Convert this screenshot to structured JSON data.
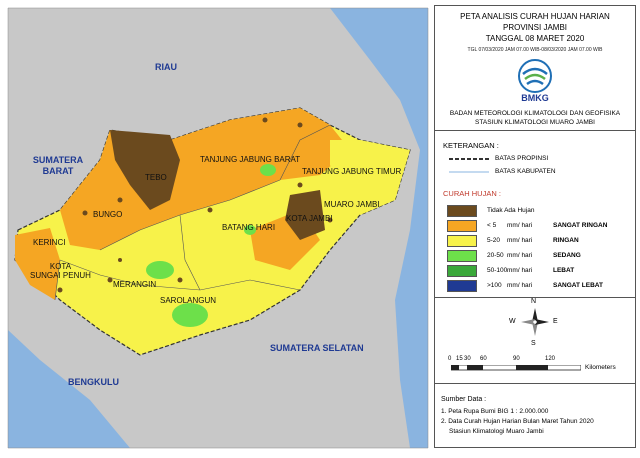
{
  "map": {
    "neighbors": {
      "riau": "RIAU",
      "sumbar": "SUMATERA\nBARAT",
      "sumsel": "SUMATERA SELATAN",
      "bengkulu": "BENGKULU"
    },
    "regions": {
      "tebo": "TEBO",
      "bungo": "BUNGO",
      "kerinci": "KERINCI",
      "sungai_penuh": "KOTA\nSUNGAI PENUH",
      "merangin": "MERANGIN",
      "sarolangun": "SAROLANGUN",
      "batang_hari": "BATANG HARI",
      "tjb": "TANJUNG JABUNG BARAT",
      "tjt": "TANJUNG JABUNG TIMUR",
      "muaro_jambi": "MUARO JAMBI",
      "kota_jambi": "KOTA JAMBI"
    },
    "colors": {
      "land": "#c8c8c8",
      "sea": "#8ab4e0",
      "no_rain": "#6b4a1e",
      "very_light": "#f5a623",
      "light": "#f7f24a",
      "moderate": "#6de04a",
      "heavy": "#3aa83a",
      "very_heavy": "#1f3a93"
    }
  },
  "panel": {
    "title1": "PETA ANALISIS CURAH HUJAN HARIAN",
    "title2": "PROVINSI JAMBI",
    "title3": "TANGGAL 08 MARET 2020",
    "tgl": "TGL 07/03/2020 JAM 07.00 WIB-08/03/2020 JAM 07.00 WIB",
    "logo_text": "BMKG",
    "agency1": "BADAN METEOROLOGI KLIMATOLOGI DAN GEOFISIKA",
    "agency2": "STASIUN KLIMATOLOGI MUARO JAMBI",
    "keterangan": "KETERANGAN :",
    "batas_prov": "BATAS PROPINSI",
    "batas_kab": "BATAS KABUPATEN",
    "curah_hujan": "CURAH HUJAN :",
    "legend": [
      {
        "range": "Tidak Ada Hujan",
        "unit": "",
        "category": "",
        "color": "#6b4a1e"
      },
      {
        "range": "< 5",
        "unit": "mm/ hari",
        "category": "SANGAT RINGAN",
        "color": "#f5a623"
      },
      {
        "range": "5-20",
        "unit": "mm/ hari",
        "category": "RINGAN",
        "color": "#f7f24a"
      },
      {
        "range": "20-50",
        "unit": "mm/ hari",
        "category": "SEDANG",
        "color": "#6de04a"
      },
      {
        "range": "50-100",
        "unit": "mm/ hari",
        "category": "LEBAT",
        "color": "#3aa83a"
      },
      {
        "range": ">100",
        "unit": "mm/ hari",
        "category": "SANGAT LEBAT",
        "color": "#1f3a93"
      }
    ],
    "compass": {
      "n": "N",
      "s": "S",
      "e": "E",
      "w": "W"
    },
    "scale": {
      "ticks": [
        "0",
        "15",
        "30",
        "60",
        "90",
        "120"
      ],
      "unit": "Kilometers"
    },
    "sumber_title": "Sumber Data :",
    "sumber1": "1. Peta Rupa Bumi BIG 1 : 2.000.000",
    "sumber2": "2. Data Curah Hujan Harian Bulan Maret Tahun 2020",
    "sumber3": "Stasiun Klimatologi Muaro Jambi"
  }
}
